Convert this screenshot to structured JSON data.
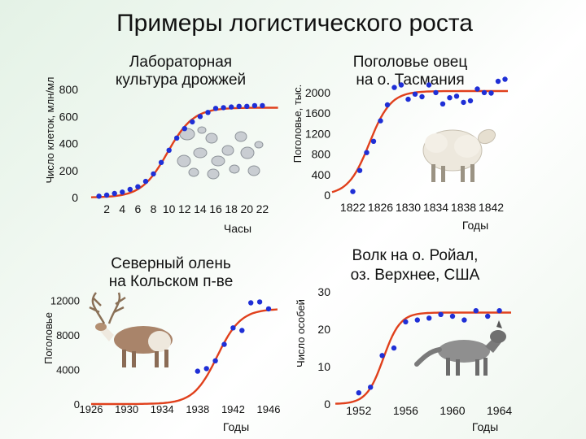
{
  "title": "Примеры логистического роста",
  "colors": {
    "curve": "#e0401c",
    "points": "#1f2fd6",
    "axis": "#333333"
  },
  "chart_data": [
    {
      "id": "yeast",
      "type": "scatter",
      "title": "Лабораторная культура дрожжей",
      "xlabel": "Часы",
      "ylabel": "Число клеток, млн/мл",
      "x_ticks": [
        "2",
        "4",
        "6",
        "8",
        "10",
        "12",
        "14",
        "16",
        "18",
        "20",
        "22"
      ],
      "y_ticks": [
        "0",
        "200",
        "400",
        "600",
        "800"
      ],
      "xlim": [
        0,
        23
      ],
      "ylim": [
        0,
        800
      ],
      "points": [
        [
          1,
          10
        ],
        [
          2,
          18
        ],
        [
          3,
          30
        ],
        [
          4,
          40
        ],
        [
          5,
          60
        ],
        [
          6,
          80
        ],
        [
          7,
          120
        ],
        [
          8,
          175
        ],
        [
          9,
          260
        ],
        [
          10,
          350
        ],
        [
          11,
          440
        ],
        [
          12,
          510
        ],
        [
          13,
          560
        ],
        [
          14,
          600
        ],
        [
          15,
          630
        ],
        [
          16,
          660
        ],
        [
          17,
          665
        ],
        [
          18,
          670
        ],
        [
          19,
          675
        ],
        [
          20,
          675
        ],
        [
          21,
          680
        ],
        [
          22,
          680
        ]
      ],
      "curve": {
        "type": "logistic",
        "K": 665,
        "r": 0.6,
        "x0": 9.8,
        "x_end": 24
      }
    },
    {
      "id": "sheep",
      "type": "scatter",
      "title": "Поголовье овец на о. Тасмания",
      "xlabel": "Годы",
      "ylabel": "Поголовье, тыс.",
      "x_ticks": [
        "1822",
        "1826",
        "1830",
        "1834",
        "1838",
        "1842"
      ],
      "y_ticks": [
        "0",
        "400",
        "800",
        "1200",
        "1600",
        "2000"
      ],
      "xlim": [
        1819,
        1843
      ],
      "ylim": [
        0,
        2300
      ],
      "points": [
        [
          1822,
          70
        ],
        [
          1823,
          480
        ],
        [
          1824,
          830
        ],
        [
          1825,
          1050
        ],
        [
          1826,
          1450
        ],
        [
          1827,
          1760
        ],
        [
          1828,
          2100
        ],
        [
          1829,
          2150
        ],
        [
          1830,
          1870
        ],
        [
          1831,
          1970
        ],
        [
          1832,
          1920
        ],
        [
          1833,
          2150
        ],
        [
          1834,
          2000
        ],
        [
          1835,
          1780
        ],
        [
          1836,
          1900
        ],
        [
          1837,
          1930
        ],
        [
          1838,
          1810
        ],
        [
          1839,
          1840
        ],
        [
          1840,
          2070
        ],
        [
          1841,
          2000
        ],
        [
          1842,
          1990
        ],
        [
          1843,
          2220
        ],
        [
          1844,
          2260
        ]
      ],
      "curve": {
        "type": "logistic",
        "K": 2030,
        "r": 0.65,
        "x0": 1824.4,
        "x_end": 1847
      }
    },
    {
      "id": "reindeer",
      "type": "scatter",
      "title": "Северный олень на Кольском п-ве",
      "xlabel": "Годы",
      "ylabel": "Поголовье",
      "x_ticks": [
        "1926",
        "1930",
        "1934",
        "1938",
        "1942",
        "1946"
      ],
      "y_ticks": [
        "0",
        "4000",
        "8000",
        "12000"
      ],
      "xlim": [
        1926,
        1946
      ],
      "ylim": [
        0,
        14000
      ],
      "points": [
        [
          1938,
          3800
        ],
        [
          1939,
          4100
        ],
        [
          1940,
          5000
        ],
        [
          1941,
          6900
        ],
        [
          1942,
          8800
        ],
        [
          1943,
          8500
        ],
        [
          1944,
          11700
        ],
        [
          1945,
          11800
        ],
        [
          1946,
          11000
        ]
      ],
      "curve": {
        "type": "logistic",
        "K": 11000,
        "r": 0.75,
        "x0": 1940.2,
        "x_start": 1926,
        "x_end": 1947
      }
    },
    {
      "id": "wolf",
      "type": "scatter",
      "title": "Волк на о. Ройал, оз. Верхнее, США",
      "xlabel": "Годы",
      "ylabel": "Число особей",
      "x_ticks": [
        "1952",
        "1956",
        "1960",
        "1964"
      ],
      "y_ticks": [
        "0",
        "10",
        "20",
        "30"
      ],
      "xlim": [
        1950,
        1965
      ],
      "ylim": [
        0,
        32
      ],
      "points": [
        [
          1952,
          3
        ],
        [
          1953,
          4.5
        ],
        [
          1954,
          13
        ],
        [
          1955,
          15
        ],
        [
          1956,
          22
        ],
        [
          1957,
          22.5
        ],
        [
          1958,
          23
        ],
        [
          1959,
          24
        ],
        [
          1960,
          23.5
        ],
        [
          1961,
          22.5
        ],
        [
          1962,
          25
        ],
        [
          1963,
          23.5
        ],
        [
          1964,
          25
        ]
      ],
      "curve": {
        "type": "logistic",
        "K": 24.5,
        "r": 1.4,
        "x0": 1954.1,
        "x_end": 1965
      }
    }
  ],
  "illustrations": {
    "yeast": "yeast-cells-picture",
    "sheep": "sheep-picture",
    "reindeer": "reindeer-picture",
    "wolf": "wolf-picture"
  }
}
